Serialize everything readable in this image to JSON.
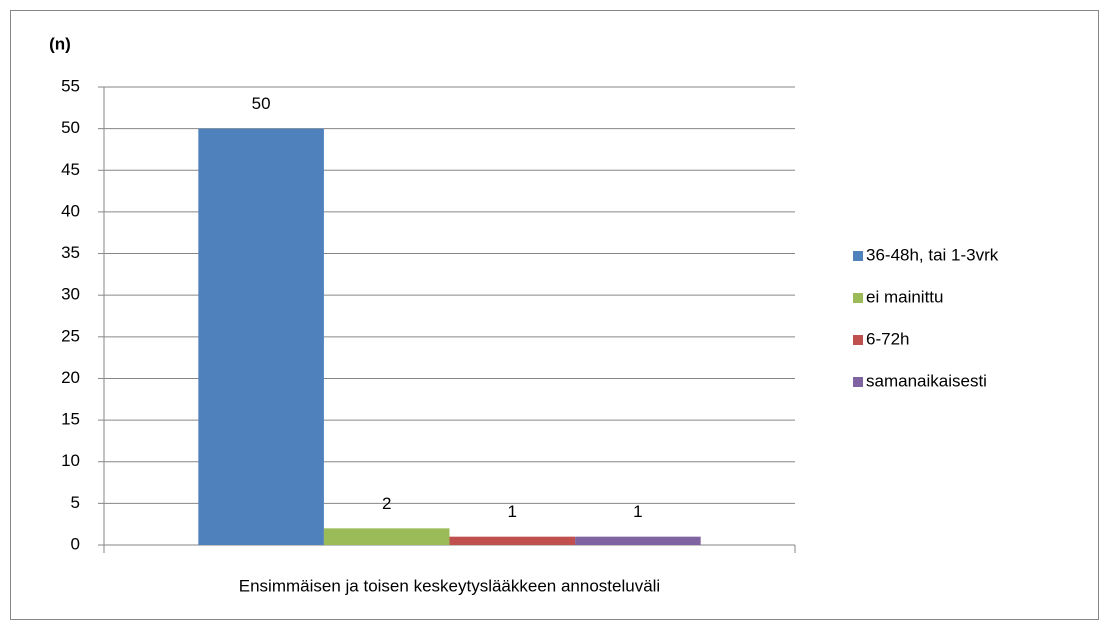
{
  "chart_data": {
    "type": "bar",
    "y_label": "(n)",
    "categories": [
      "Ensimmäisen ja toisen keskeytyslääkkeen annosteluväli"
    ],
    "series": [
      {
        "name": "36-48h, tai 1-3vrk",
        "color": "#4f81bd",
        "values": [
          50
        ]
      },
      {
        "name": "ei mainittu",
        "color": "#9bbb59",
        "values": [
          2
        ]
      },
      {
        "name": "6-72h",
        "color": "#c0504d",
        "values": [
          1
        ]
      },
      {
        "name": "samanaikaisesti",
        "color": "#8064a2",
        "values": [
          1
        ]
      }
    ],
    "ylim": [
      0,
      55
    ],
    "yticks": [
      0,
      5,
      10,
      15,
      20,
      25,
      30,
      35,
      40,
      45,
      50,
      55
    ],
    "grid": true,
    "legend": "right"
  }
}
